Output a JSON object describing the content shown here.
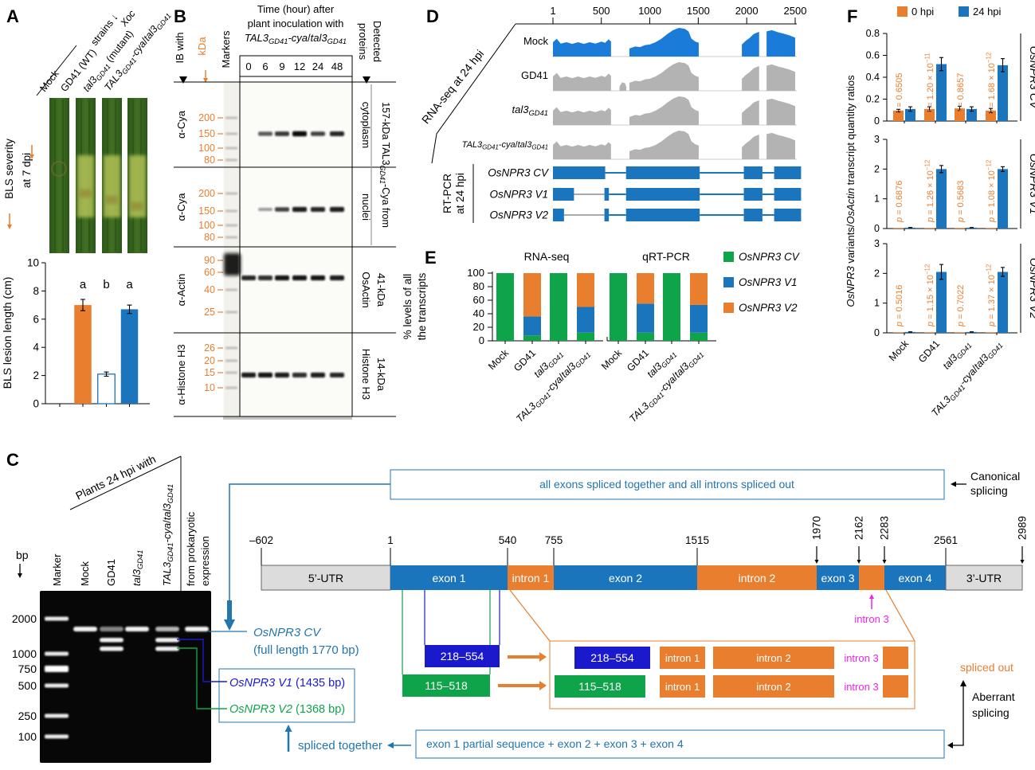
{
  "colors": {
    "orange": "#E87E2E",
    "blue": "#1B75BC",
    "coverage_blue": "#1B7BD8",
    "dark_blue": "#1A1ACC",
    "green": "#0FA44A",
    "magenta": "#EE22EE",
    "gray_track": "#B3B3B3",
    "utr_gray": "#DCDCDC",
    "annotation_blue": "#2176AE"
  },
  "panelA": {
    "label": "A",
    "xoc_label": "*Xoc*",
    "strains_label": "strains ↓",
    "strain_labels": [
      "Mock",
      "GD41 (WT)",
      "*tal3*_{GD41} (mutant)",
      "*TAL3*_{GD41}*-cya*/*tal3*_{GD41}"
    ],
    "severity_label_1": "BLS severity",
    "severity_label_2": "at 7 dpi"
  },
  "panelB": {
    "label": "B",
    "ib_with": "IB with",
    "kda": "kDa",
    "markers": "Markers",
    "header": [
      "Time (hour) after",
      "plant inoculation with",
      "*TAL3*_{GD41}*-cya*/*tal3*_{GD41}"
    ],
    "times": [
      "0",
      "6",
      "9",
      "12",
      "24",
      "48"
    ],
    "detected_1": "Detected",
    "detected_2": "proteins",
    "span_right_label": "157-kDa TAL3_{GD41}-Cya from",
    "blots": [
      {
        "antibody": "α-Cya",
        "kda_marks": [
          "200",
          "150",
          "100",
          "80"
        ],
        "right_label": "cytoplasm",
        "bands": [
          0,
          0.55,
          0.75,
          1,
          0.7,
          0.85
        ]
      },
      {
        "antibody": "α-Cya",
        "kda_marks": [
          "200",
          "150",
          "100",
          "80"
        ],
        "right_label": "nuclei",
        "bands": [
          0,
          0.2,
          0.7,
          0.9,
          0.85,
          0.9
        ]
      },
      {
        "antibody": "α-Actin",
        "kda_marks": [
          "90",
          "60",
          "40",
          "25"
        ],
        "right_label": "OsActin",
        "size_label": "41-kDa",
        "bands": [
          0.85,
          0.8,
          0.95,
          0.95,
          0.95,
          0.9
        ]
      },
      {
        "antibody": "α-Histone H3",
        "kda_marks": [
          "26",
          "20",
          "15",
          "10"
        ],
        "right_label": "Histone H3",
        "size_label": "14-kDa",
        "bands": [
          0.9,
          0.95,
          0.9,
          0.8,
          0.9,
          0.85
        ]
      }
    ]
  },
  "panelC": {
    "label": "C",
    "bp_label": "bp",
    "lane_header": "Plants 24 hpi with",
    "lanes": [
      "Marker",
      "Mock",
      "GD41",
      "*tal3*_{GD41}",
      "*TAL3*_{GD41}*-cya*/*tal3*_{GD41}"
    ],
    "prok_lane_1": "from prokaryotic",
    "prok_lane_2": "expression",
    "ladder_bp": [
      "2000",
      "1000",
      "750",
      "500",
      "250",
      "100"
    ],
    "gel_bands_bp": {
      "Mock": [
        1770
      ],
      "GD41": [
        1770,
        1435,
        1368
      ],
      "tal3": [
        1770
      ],
      "TAL3": [
        1770,
        1435,
        1368
      ],
      "prok": [
        1770
      ]
    },
    "cv_line1": "*OsNPR3 CV*",
    "cv_line2": "(full length 1770 bp)",
    "v1_label": "*OsNPR3 V1* (1435 bp)",
    "v2_label": "*OsNPR3 V2* (1368 bp)",
    "canonical_box": "all exons spliced together and all introns spliced out",
    "canonical_1": "Canonical",
    "canonical_2": "splicing",
    "coords_h": [
      "–602",
      "1",
      "540",
      "755",
      "1515",
      "2561"
    ],
    "coords_v": [
      "1970",
      "2162",
      "2283",
      "2989"
    ],
    "gene_segments": [
      "5’-UTR",
      "exon 1",
      "intron 1",
      "exon 2",
      "intron 2",
      "exon 3",
      "",
      "exon 4",
      "3’-UTR"
    ],
    "intron3_label": "intron 3",
    "v1_block": "218–554",
    "v2_block": "115–518",
    "intron_row": [
      "intron 1",
      "intron 2",
      "intron 3"
    ],
    "spliced_out": "spliced out",
    "aberrant_1": "Aberrant",
    "aberrant_2": "splicing",
    "bottom_box": "exon 1 partial sequence + exon 2 + exon 3 + exon 4",
    "spliced_together": "spliced together"
  },
  "panelD": {
    "label": "D",
    "scale_ticks": [
      "1",
      "500",
      "1000",
      "1500",
      "2000",
      "2500"
    ],
    "scale_bp": [
      1,
      500,
      1000,
      1500,
      2000,
      2500
    ],
    "rnaseq_label": "RNA-seq at 24 hpi",
    "tracks": [
      "Mock",
      "GD41",
      "*tal3*_{GD41}",
      "*TAL3*_{GD41}*-cya*/*tal3*_{GD41}"
    ],
    "rtpcr_1": "RT-PCR",
    "rtpcr_2": "at 24 hpi",
    "models": [
      {
        "name": "*OsNPR3 CV*",
        "blocks_bp": [
          [
            1,
            540
          ],
          [
            755,
            1515
          ],
          [
            1970,
            2162
          ],
          [
            2283,
            2561
          ]
        ],
        "gray_connector": null
      },
      {
        "name": "*OsNPR3 V1*",
        "blocks_bp": [
          [
            1,
            218
          ],
          [
            532,
            578
          ],
          [
            755,
            1515
          ],
          [
            1970,
            2162
          ],
          [
            2283,
            2561
          ]
        ],
        "gray_connector": [
          218,
          532
        ]
      },
      {
        "name": "*OsNPR3 V2*",
        "blocks_bp": [
          [
            1,
            115
          ],
          [
            532,
            578
          ],
          [
            755,
            1515
          ],
          [
            1970,
            2162
          ],
          [
            2283,
            2561
          ]
        ],
        "gray_connector": [
          115,
          532
        ]
      }
    ]
  },
  "panelE": {
    "label": "E",
    "titles": [
      "RNA-seq",
      "qRT-PCR"
    ],
    "ylabel_1": "% levels of all",
    "ylabel_2": "the transcripts",
    "legend": [
      {
        "name": "*OsNPR3 CV*",
        "color": "green"
      },
      {
        "name": "*OsNPR3 V1*",
        "color": "blue"
      },
      {
        "name": "*OsNPR3 V2*",
        "color": "orange"
      }
    ]
  },
  "panelF": {
    "label": "F",
    "legend": [
      {
        "name": "0 hpi",
        "color": "orange"
      },
      {
        "name": "24 hpi",
        "color": "blue"
      }
    ],
    "ylabel": "*OsNPR3* variants/*OsActin* transcript quantity ratios"
  },
  "categories_fmt": [
    "Mock",
    "GD41",
    "*tal3*_{GD41}",
    "*TAL3*_{GD41}*-cya*/*tal3*_{GD41}"
  ],
  "chart_data": [
    {
      "id": "A-lesion",
      "type": "bar",
      "ylabel": "BLS lesion length (cm)",
      "ylim": [
        0,
        10
      ],
      "yticks": [
        0,
        2,
        4,
        6,
        8,
        10
      ],
      "categories": [
        "Mock",
        "GD41",
        "tal3GD41",
        "TAL3GD41-cya/tal3GD41"
      ],
      "values": [
        0,
        7.0,
        2.1,
        6.7
      ],
      "errors": [
        0,
        0.4,
        0.15,
        0.3
      ],
      "sig_letters": [
        "",
        "a",
        "b",
        "a"
      ],
      "bar_styles": [
        "none",
        "orange",
        "white-outline",
        "blue"
      ]
    },
    {
      "id": "E-rnaseq",
      "type": "stacked-bar",
      "title": "RNA-seq",
      "ylabel": "% levels of all the transcripts",
      "ylim": [
        0,
        100
      ],
      "yticks": [
        0,
        20,
        40,
        60,
        80,
        100
      ],
      "categories": [
        "Mock",
        "GD41",
        "tal3GD41",
        "TAL3GD41-cya/tal3GD41"
      ],
      "series": [
        {
          "name": "OsNPR3 CV",
          "color": "green",
          "values": [
            100,
            8,
            100,
            12
          ]
        },
        {
          "name": "OsNPR3 V1",
          "color": "blue",
          "values": [
            0,
            28,
            0,
            38
          ]
        },
        {
          "name": "OsNPR3 V2",
          "color": "orange",
          "values": [
            0,
            64,
            0,
            50
          ]
        }
      ]
    },
    {
      "id": "E-qrtpcr",
      "type": "stacked-bar",
      "title": "qRT-PCR",
      "ylim": [
        0,
        100
      ],
      "categories": [
        "Mock",
        "GD41",
        "tal3GD41",
        "TAL3GD41-cya/tal3GD41"
      ],
      "series": [
        {
          "name": "OsNPR3 CV",
          "color": "green",
          "values": [
            100,
            12,
            100,
            12
          ]
        },
        {
          "name": "OsNPR3 V1",
          "color": "blue",
          "values": [
            0,
            43,
            0,
            41
          ]
        },
        {
          "name": "OsNPR3 V2",
          "color": "orange",
          "values": [
            0,
            45,
            0,
            47
          ]
        }
      ]
    },
    {
      "id": "F-cv",
      "type": "bar",
      "group_label": "*OsNPR3 CV*",
      "ylim": [
        0,
        0.8
      ],
      "yticks": [
        "0",
        "0.2",
        "0.4",
        "0.6",
        "0.8"
      ],
      "categories": [
        "Mock",
        "GD41",
        "tal3GD41",
        "TAL3GD41-cya/tal3GD41"
      ],
      "series": [
        {
          "name": "0 hpi",
          "values": [
            0.095,
            0.11,
            0.115,
            0.095
          ],
          "errors": [
            0.012,
            0.02,
            0.02,
            0.02
          ]
        },
        {
          "name": "24 hpi",
          "values": [
            0.11,
            0.52,
            0.11,
            0.51
          ],
          "errors": [
            0.02,
            0.06,
            0.02,
            0.06
          ]
        }
      ],
      "p_values": [
        "*p* = 0.6505",
        "*p* = 1.20 × 10^{−11}",
        "*p* = 0.8657",
        "*p* = 1.68 × 10^{−12}"
      ]
    },
    {
      "id": "F-v1",
      "type": "bar",
      "group_label": "*OsNPR3 V1*",
      "ylim": [
        0,
        3
      ],
      "yticks": [
        "0",
        "1",
        "2",
        "3"
      ],
      "categories": [
        "Mock",
        "GD41",
        "tal3GD41",
        "TAL3GD41-cya/tal3GD41"
      ],
      "series": [
        {
          "name": "0 hpi",
          "values": [
            0.02,
            0.02,
            0.02,
            0.02
          ],
          "errors": [
            0,
            0,
            0,
            0
          ]
        },
        {
          "name": "24 hpi",
          "values": [
            0.03,
            2.0,
            0.03,
            2.0
          ],
          "errors": [
            0.005,
            0.12,
            0.005,
            0.08
          ]
        }
      ],
      "p_values": [
        "*p* = 0.6876",
        "*p* = 1.26 × 10^{−12}",
        "*p* = 0.5683",
        "*p* = 1.08 × 10^{−12}"
      ]
    },
    {
      "id": "F-v2",
      "type": "bar",
      "group_label": "*OsNPR3 V2*",
      "ylim": [
        0,
        3
      ],
      "yticks": [
        "0",
        "1",
        "2",
        "3"
      ],
      "categories": [
        "Mock",
        "GD41",
        "tal3GD41",
        "TAL3GD41-cya/tal3GD41"
      ],
      "series": [
        {
          "name": "0 hpi",
          "values": [
            0.02,
            0.02,
            0.02,
            0.02
          ],
          "errors": [
            0,
            0,
            0,
            0
          ]
        },
        {
          "name": "24 hpi",
          "values": [
            0.03,
            2.05,
            0.03,
            2.05
          ],
          "errors": [
            0.005,
            0.25,
            0.005,
            0.15
          ]
        }
      ],
      "p_values": [
        "*p* = 0.5016",
        "*p* = 1.15 × 10^{−12}",
        "*p* = 0.7022",
        "*p* = 1.37 × 10^{−12}"
      ]
    }
  ]
}
